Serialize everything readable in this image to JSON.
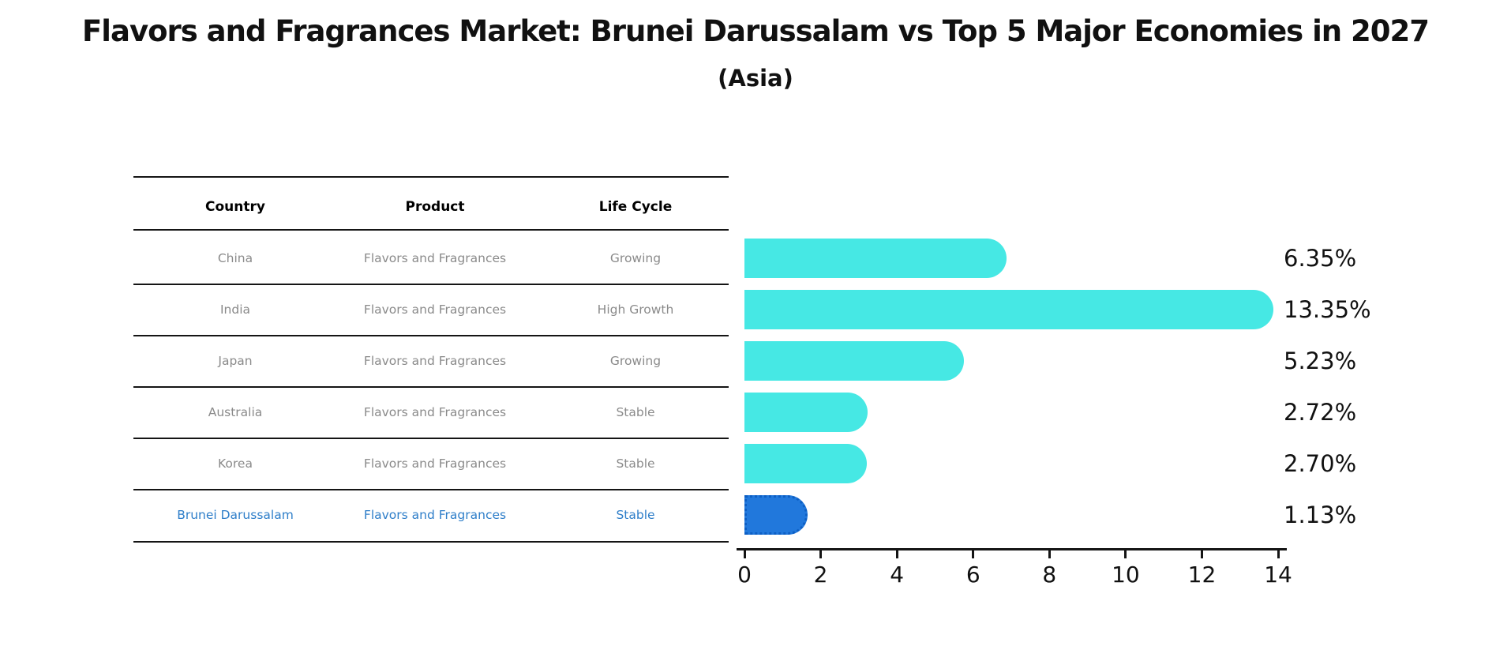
{
  "title": {
    "text": "Flavors and Fragrances Market: Brunei Darussalam vs Top 5 Major Economies in 2027",
    "subtitle": "(Asia)"
  },
  "table": {
    "headers": [
      "Country",
      "Product",
      "Life Cycle"
    ],
    "rows": [
      {
        "country": "China",
        "product": "Flavors and Fragrances",
        "life_cycle": "Growing",
        "highlight": false
      },
      {
        "country": "India",
        "product": "Flavors and Fragrances",
        "life_cycle": "High Growth",
        "highlight": false
      },
      {
        "country": "Japan",
        "product": "Flavors and Fragrances",
        "life_cycle": "Growing",
        "highlight": false
      },
      {
        "country": "Australia",
        "product": "Flavors and Fragrances",
        "life_cycle": "Stable",
        "highlight": false
      },
      {
        "country": "Korea",
        "product": "Flavors and Fragrances",
        "life_cycle": "Stable",
        "highlight": false
      },
      {
        "country": "Brunei Darussalam",
        "product": "Flavors and Fragrances",
        "life_cycle": "Stable",
        "highlight": true
      }
    ]
  },
  "chart_data": {
    "type": "bar",
    "orientation": "horizontal",
    "title": "Flavors and Fragrances Market: Brunei Darussalam vs Top 5 Major Economies in 2027",
    "subtitle": "(Asia)",
    "categories": [
      "China",
      "India",
      "Japan",
      "Australia",
      "Korea",
      "Brunei Darussalam"
    ],
    "values": [
      6.35,
      13.35,
      5.23,
      2.72,
      2.7,
      1.13
    ],
    "value_labels": [
      "6.35%",
      "13.35%",
      "5.23%",
      "2.72%",
      "2.70%",
      "1.13%"
    ],
    "xlabel": "",
    "ylabel": "",
    "xlim": [
      0,
      14
    ],
    "x_ticks": [
      0,
      2,
      4,
      6,
      8,
      10,
      12,
      14
    ],
    "grid": false,
    "legend": false,
    "highlight_index": 5
  },
  "colors": {
    "bar_default": "#46e8e4",
    "bar_highlight": "#2178dc",
    "bar_highlight_edge": "#0d5fc4",
    "highlight_text": "#2e7ec9",
    "row_text": "#8a8a8a",
    "header_text": "#000000",
    "axis_text": "#111111",
    "line": "#151515",
    "background": "#ffffff"
  }
}
